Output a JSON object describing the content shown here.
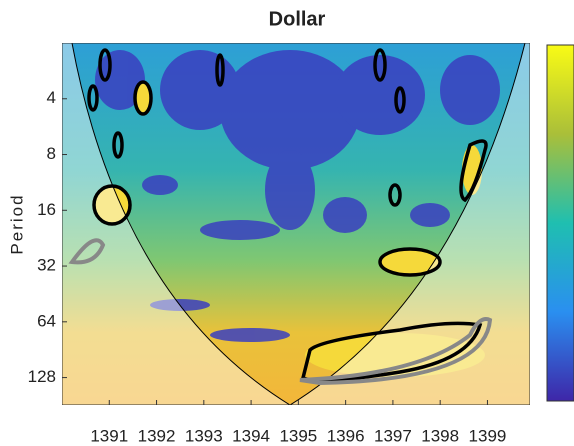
{
  "chart_data": {
    "type": "wavelet",
    "title": "Dollar",
    "y_label": "Period",
    "xlim": [
      1390,
      1399.9
    ],
    "xticks": [
      1391,
      1392,
      1393,
      1394,
      1395,
      1396,
      1397,
      1398,
      1399
    ],
    "ylim": [
      2,
      180
    ],
    "yscale": "log",
    "yinvert": true,
    "yticks": [
      4,
      8,
      16,
      32,
      64,
      128
    ]
  }
}
